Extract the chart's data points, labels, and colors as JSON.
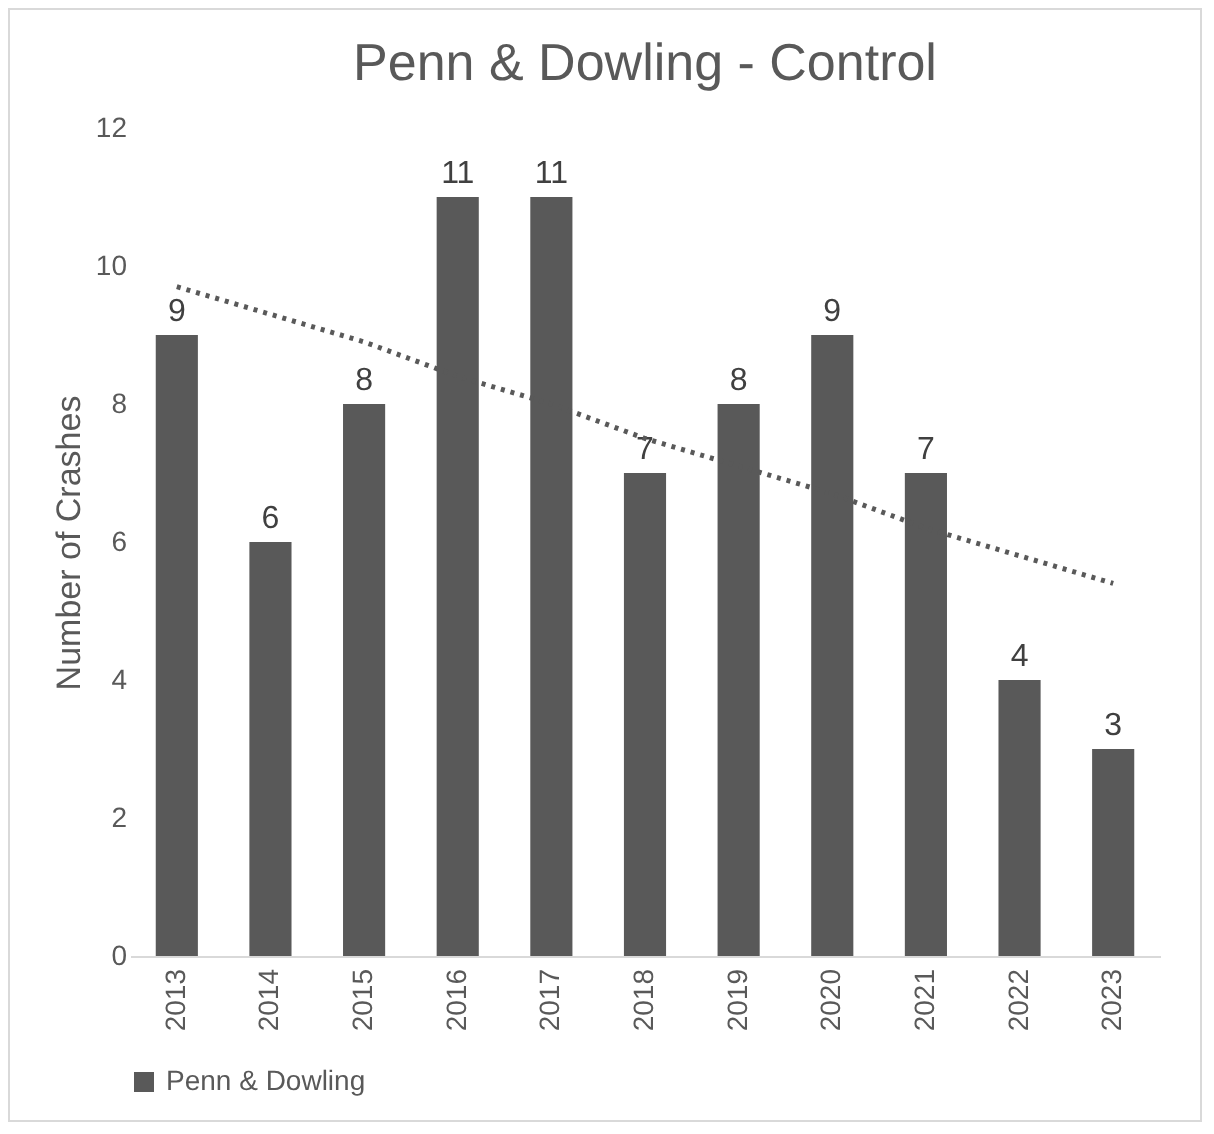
{
  "chart_data": {
    "type": "bar",
    "title": "Penn & Dowling - Control",
    "ylabel": "Number of Crashes",
    "categories": [
      "2013",
      "2014",
      "2015",
      "2016",
      "2017",
      "2018",
      "2019",
      "2020",
      "2021",
      "2022",
      "2023"
    ],
    "series": [
      {
        "name": "Penn & Dowling",
        "color": "#595959",
        "values": [
          9,
          6,
          8,
          11,
          11,
          7,
          8,
          9,
          7,
          4,
          3
        ],
        "value_labels": [
          "9",
          "6",
          "8",
          "11",
          "11",
          "7",
          "8",
          "9",
          "7",
          "4",
          "3"
        ]
      },
      {
        "type": "line",
        "color": "#595959",
        "line_style": "dotted",
        "values": [
          9.7,
          9.3,
          8.9,
          8.4,
          8.0,
          7.5,
          7.1,
          6.7,
          6.2,
          5.8,
          5.4
        ]
      }
    ],
    "ylim": [
      0,
      12
    ],
    "yticks": [
      0,
      2,
      4,
      6,
      8,
      10,
      12
    ],
    "legend": "bottom"
  }
}
